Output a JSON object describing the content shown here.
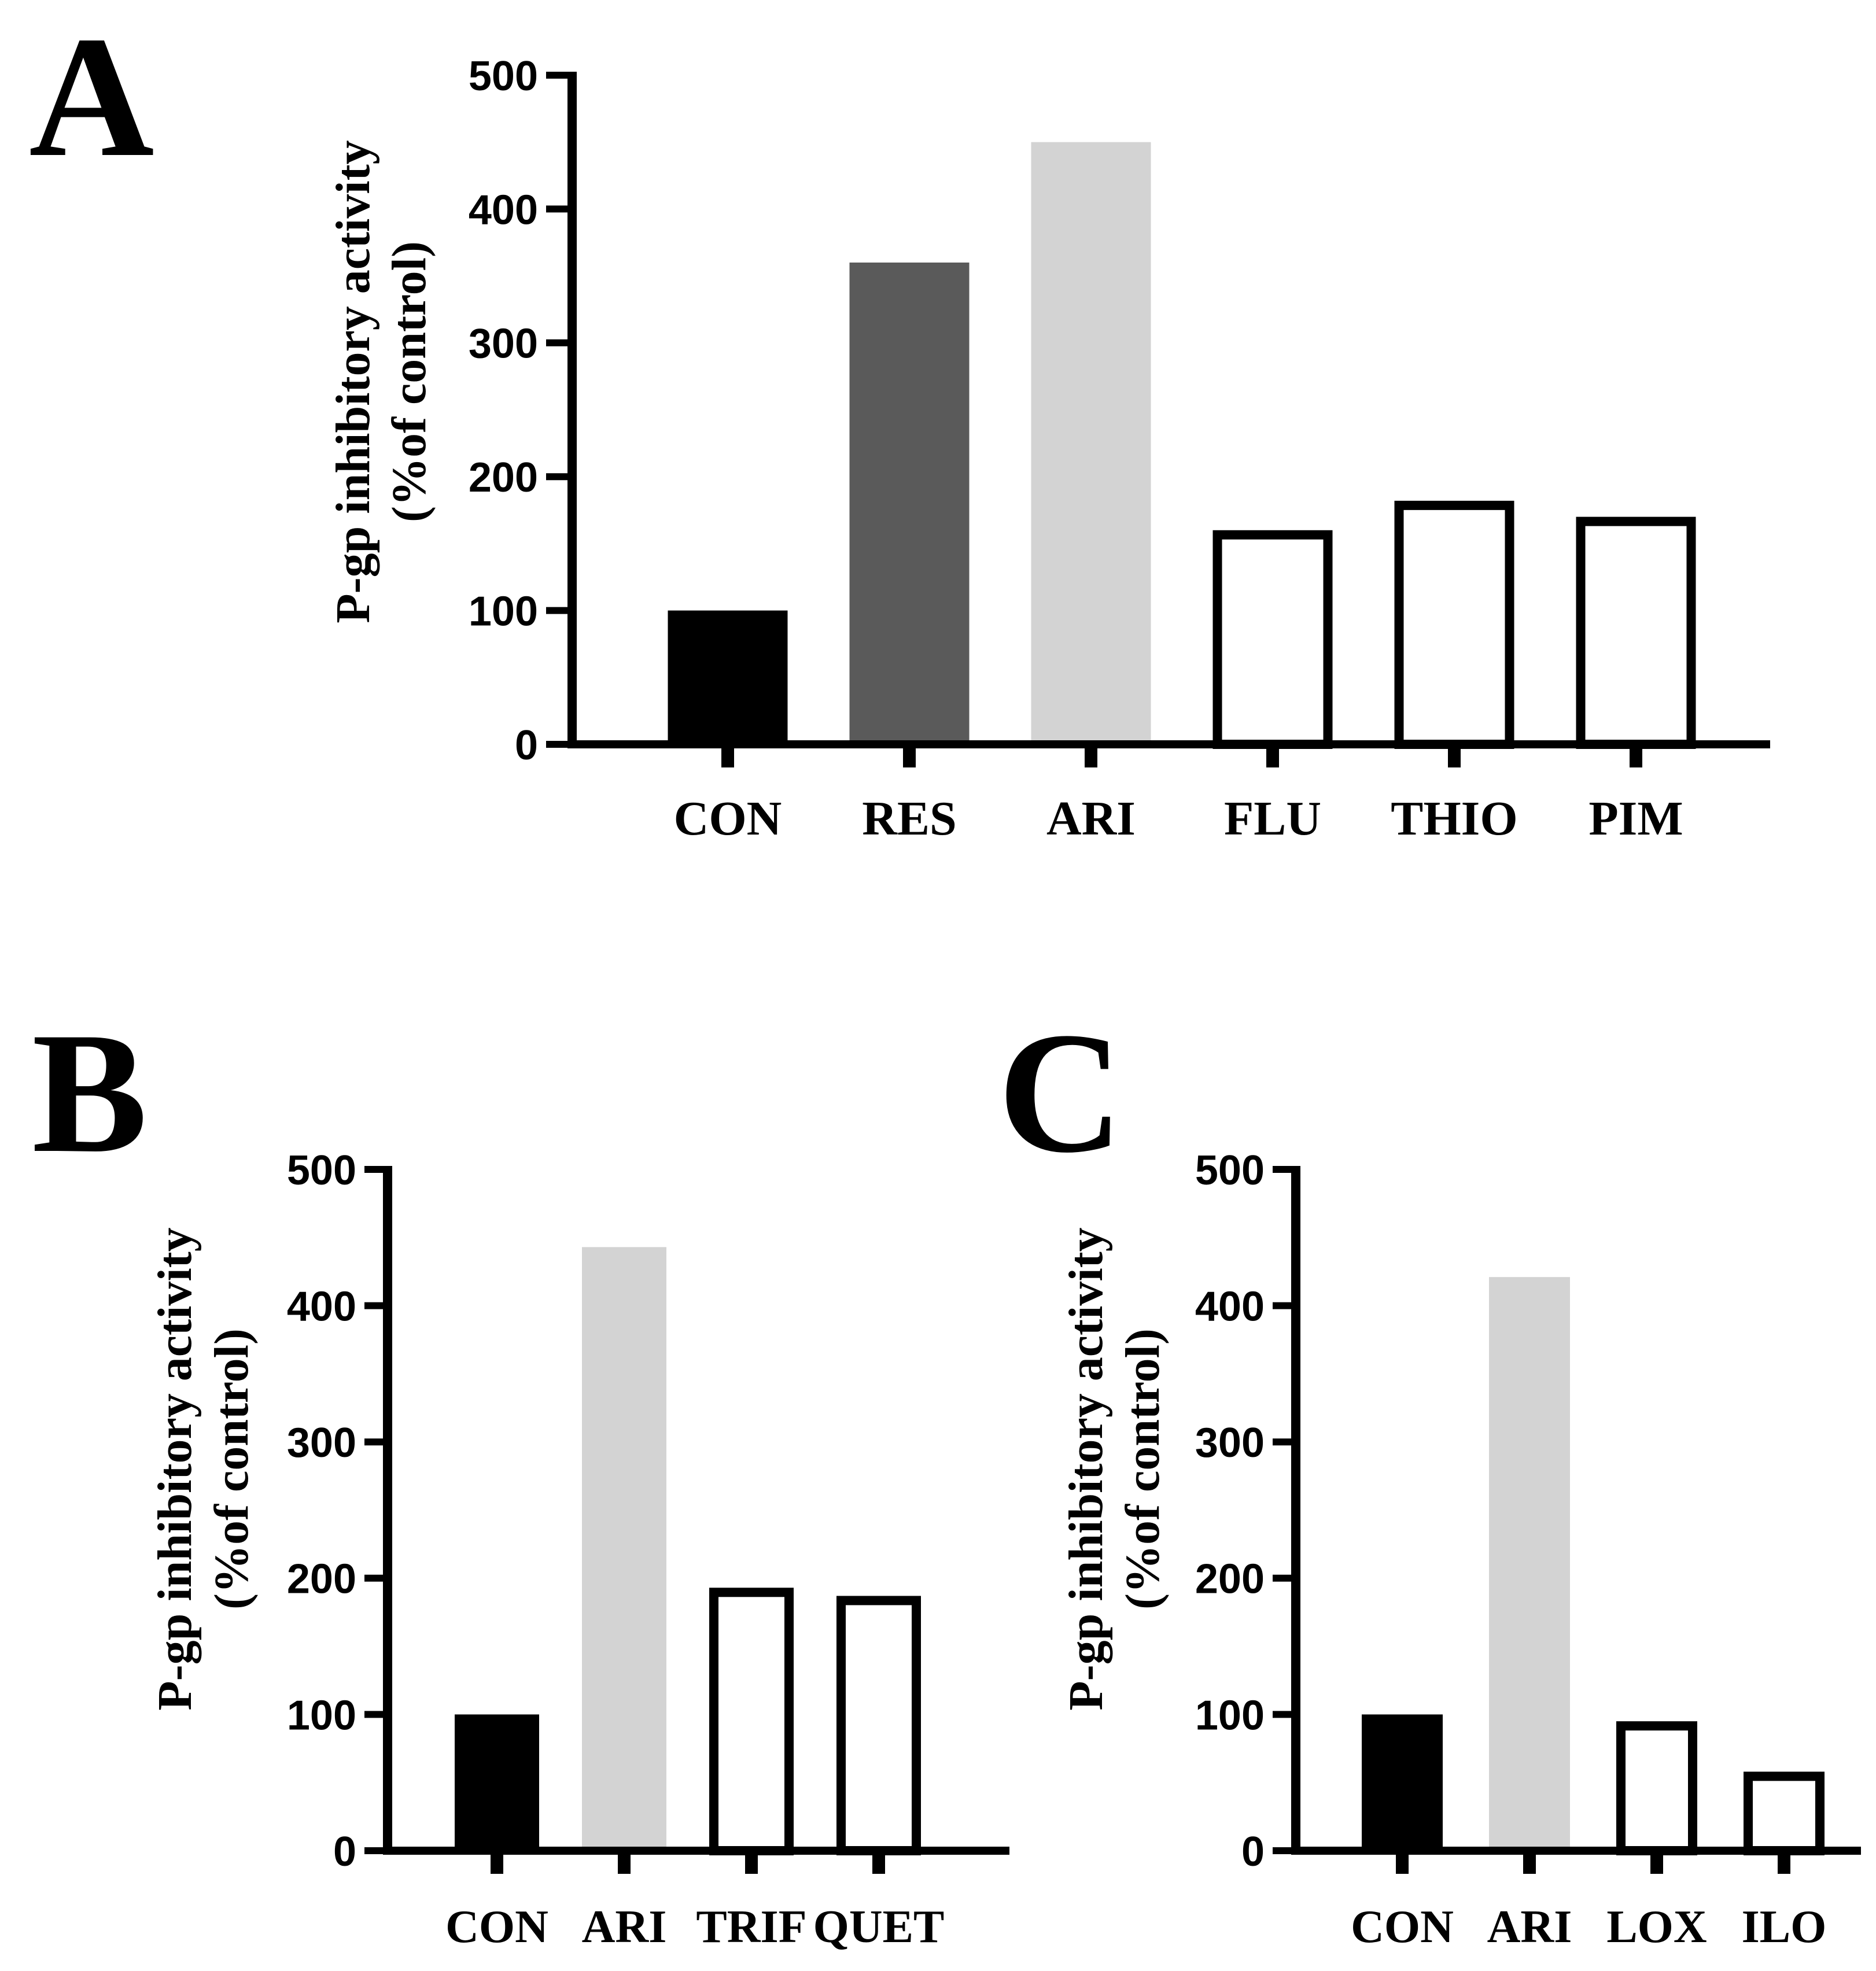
{
  "chart_data": [
    {
      "type": "bar",
      "panel": "A",
      "categories": [
        "CON",
        "RES",
        "ARI",
        "FLU",
        "THIO",
        "PIM"
      ],
      "values": [
        100,
        360,
        450,
        160,
        182,
        170
      ],
      "fills": [
        "#000000",
        "#5a5a5a",
        "#d3d3d3",
        "#ffffff",
        "#ffffff",
        "#ffffff"
      ],
      "outlined": [
        false,
        false,
        false,
        true,
        true,
        true
      ],
      "ylim": [
        0,
        500
      ],
      "yticks": [
        "0",
        "100",
        "200",
        "300",
        "400",
        "500"
      ],
      "ylabel_line1": "P-gp inhibitory  activity",
      "ylabel_line2": "(%of control)",
      "xlabel": "",
      "title": ""
    },
    {
      "type": "bar",
      "panel": "B",
      "categories": [
        "CON",
        "ARI",
        "TRIF",
        "QUET"
      ],
      "values": [
        100,
        443,
        193,
        187
      ],
      "fills": [
        "#000000",
        "#d3d3d3",
        "#ffffff",
        "#ffffff"
      ],
      "outlined": [
        false,
        false,
        true,
        true
      ],
      "ylim": [
        0,
        500
      ],
      "yticks": [
        "0",
        "100",
        "200",
        "300",
        "400",
        "500"
      ],
      "ylabel_line1": "P-gp inhibitory  activity",
      "ylabel_line2": "(%of control)",
      "xlabel": "",
      "title": ""
    },
    {
      "type": "bar",
      "panel": "C",
      "categories": [
        "CON",
        "ARI",
        "LOX",
        "ILO"
      ],
      "values": [
        100,
        421,
        95,
        58
      ],
      "fills": [
        "#000000",
        "#d3d3d3",
        "#ffffff",
        "#ffffff"
      ],
      "outlined": [
        false,
        false,
        true,
        true
      ],
      "ylim": [
        0,
        500
      ],
      "yticks": [
        "0",
        "100",
        "200",
        "300",
        "400",
        "500"
      ],
      "ylabel_line1": "P-gp inhibitory  activity",
      "ylabel_line2": "(%of control)",
      "xlabel": "",
      "title": ""
    }
  ]
}
